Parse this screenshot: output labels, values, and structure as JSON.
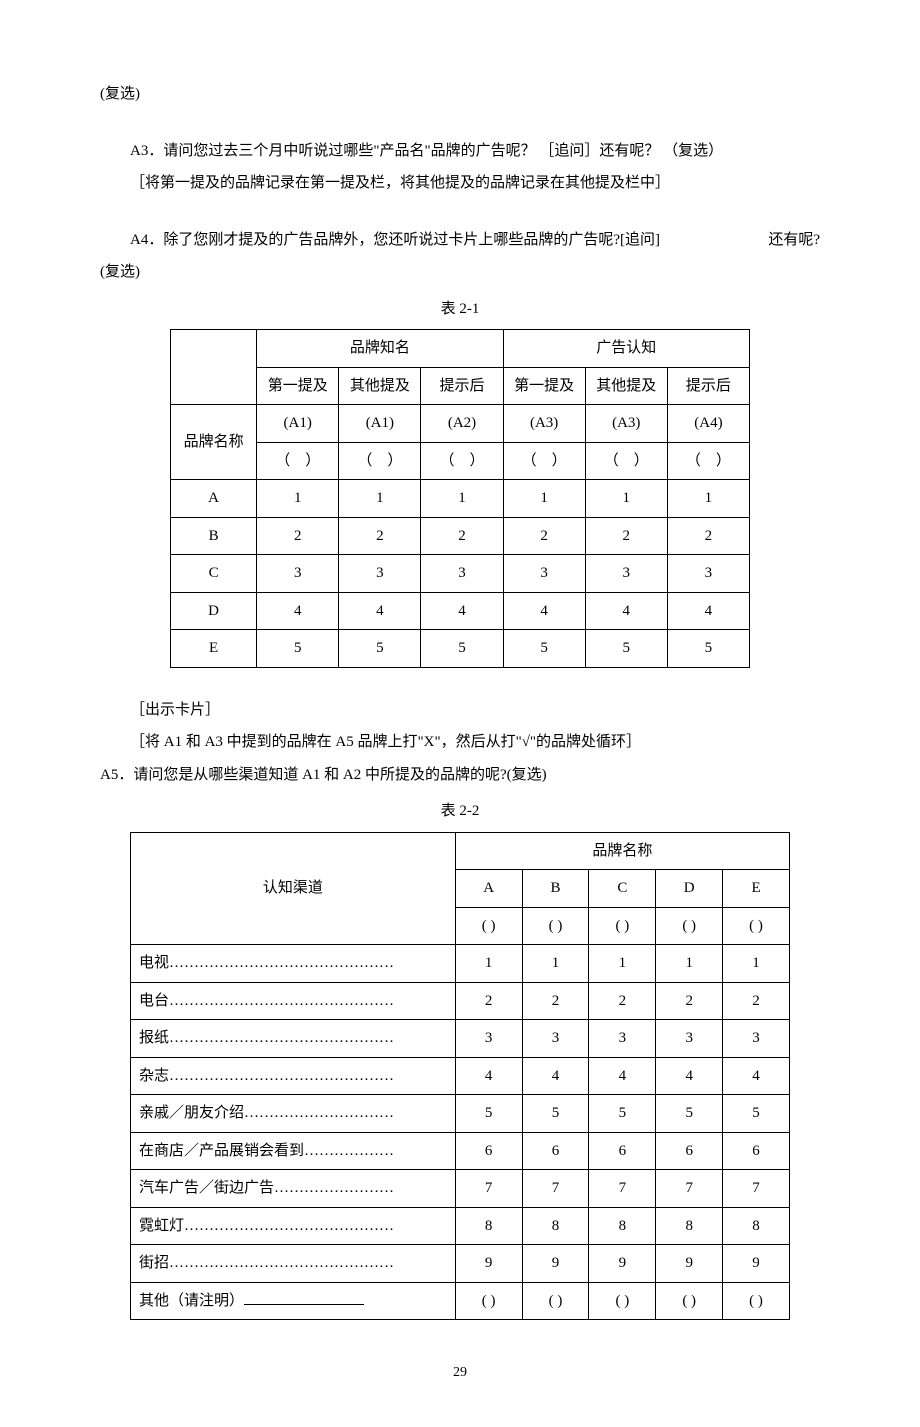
{
  "intro": {
    "line0": "(复选)"
  },
  "q3": {
    "label": "A3．",
    "text": "请问您过去三个月中听说过哪些\"产品名\"品牌的广告呢？ ［追问］还有呢？ （复选）",
    "note": "［将第一提及的品牌记录在第一提及栏，将其他提及的品牌记录在其他提及栏中］"
  },
  "q4": {
    "label": "A4．",
    "text_a": "除了您刚才提及的广告品牌外，您还听说过卡片上哪些品牌的广告呢?[追问]",
    "text_b": "还有呢?",
    "suffix": "(复选)"
  },
  "table1": {
    "caption": "表 2-1",
    "group1": "品牌知名",
    "group2": "广告认知",
    "subcols": [
      "第一提及",
      "其他提及",
      "提示后",
      "第一提及",
      "其他提及",
      "提示后"
    ],
    "codes": [
      "(A1)",
      "(A1)",
      "(A2)",
      "(A3)",
      "(A3)",
      "(A4)"
    ],
    "parens": [
      "（　）",
      "（　）",
      "（　）",
      "（　）",
      "（　）",
      "（　）"
    ],
    "rowLabel": "品牌名称",
    "rows": [
      {
        "name": "A",
        "v": [
          "1",
          "1",
          "1",
          "1",
          "1",
          "1"
        ]
      },
      {
        "name": "B",
        "v": [
          "2",
          "2",
          "2",
          "2",
          "2",
          "2"
        ]
      },
      {
        "name": "C",
        "v": [
          "3",
          "3",
          "3",
          "3",
          "3",
          "3"
        ]
      },
      {
        "name": "D",
        "v": [
          "4",
          "4",
          "4",
          "4",
          "4",
          "4"
        ]
      },
      {
        "name": "E",
        "v": [
          "5",
          "5",
          "5",
          "5",
          "5",
          "5"
        ]
      }
    ]
  },
  "mid": {
    "show": "［出示卡片］",
    "inst": "［将 A1 和 A3 中提到的品牌在 A5 品牌上打\"X\"，然后从打\"√\"的品牌处循环］"
  },
  "q5": {
    "label": "A5．",
    "text": "请问您是从哪些渠道知道 A1 和 A2 中所提及的品牌的呢?(复选)"
  },
  "table2": {
    "caption": "表 2-2",
    "headLeft": "认知渠道",
    "headGroup": "品牌名称",
    "brands": [
      "A",
      "B",
      "C",
      "D",
      "E"
    ],
    "parens": [
      "(  )",
      "(  )",
      "(  )",
      "(  )",
      "(  )"
    ],
    "rows": [
      {
        "name": "电视………………………………………",
        "v": [
          "1",
          "1",
          "1",
          "1",
          "1"
        ]
      },
      {
        "name": "电台………………………………………",
        "v": [
          "2",
          "2",
          "2",
          "2",
          "2"
        ]
      },
      {
        "name": "报纸………………………………………",
        "v": [
          "3",
          "3",
          "3",
          "3",
          "3"
        ]
      },
      {
        "name": "杂志………………………………………",
        "v": [
          "4",
          "4",
          "4",
          "4",
          "4"
        ]
      },
      {
        "name": "亲戚／朋友介绍…………………………",
        "v": [
          "5",
          "5",
          "5",
          "5",
          "5"
        ]
      },
      {
        "name": "在商店／产品展销会看到………………",
        "v": [
          "6",
          "6",
          "6",
          "6",
          "6"
        ]
      },
      {
        "name": "汽车广告／街边广告……………………",
        "v": [
          "7",
          "7",
          "7",
          "7",
          "7"
        ]
      },
      {
        "name": "霓虹灯……………………………………",
        "v": [
          "8",
          "8",
          "8",
          "8",
          "8"
        ]
      },
      {
        "name": "街招………………………………………",
        "v": [
          "9",
          "9",
          "9",
          "9",
          "9"
        ]
      }
    ],
    "otherLabel": "其他（请注明）",
    "otherVals": [
      "(  )",
      "(  )",
      "(  )",
      "(  )",
      "(  )"
    ]
  },
  "pageNum": "29"
}
